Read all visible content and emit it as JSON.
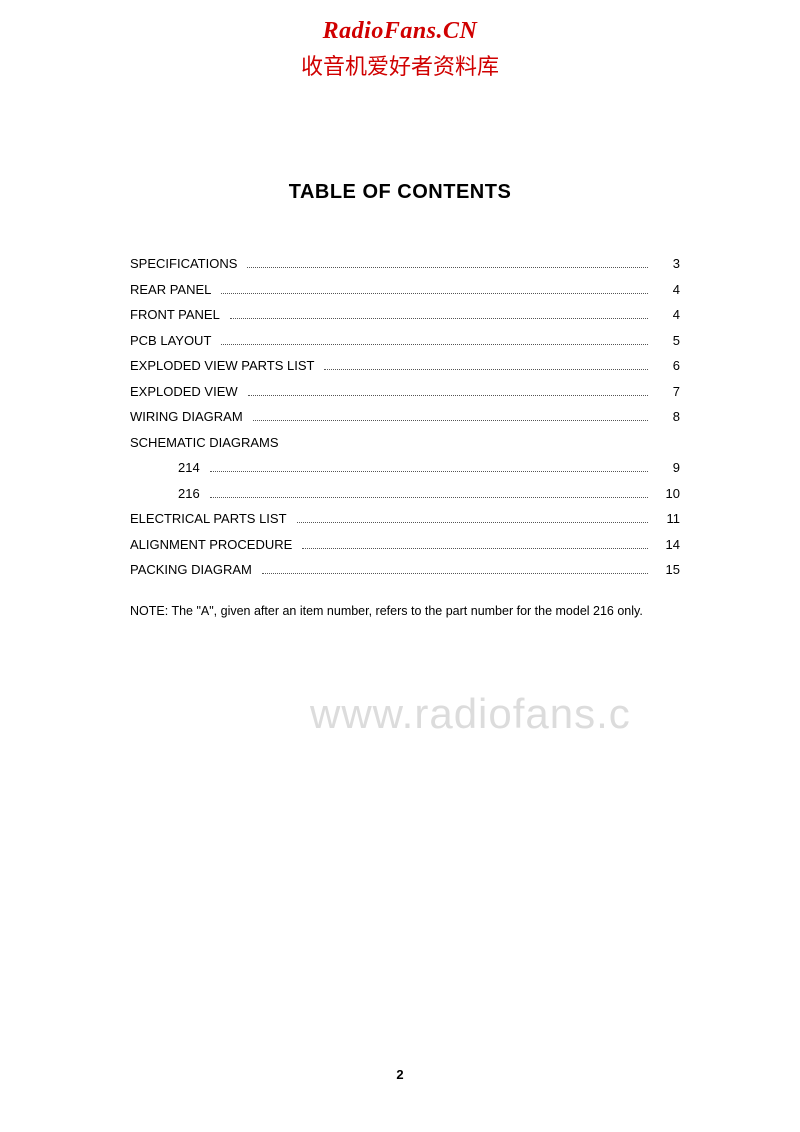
{
  "header": {
    "site_title": "RadioFans.CN",
    "site_subtitle": "收音机爱好者资料库"
  },
  "toc": {
    "title": "TABLE OF CONTENTS",
    "entries": [
      {
        "label": "SPECIFICATIONS",
        "page": "3",
        "indent": false,
        "has_page": true
      },
      {
        "label": "REAR PANEL",
        "page": "4",
        "indent": false,
        "has_page": true
      },
      {
        "label": "FRONT PANEL",
        "page": "4",
        "indent": false,
        "has_page": true
      },
      {
        "label": "PCB LAYOUT",
        "page": "5",
        "indent": false,
        "has_page": true
      },
      {
        "label": "EXPLODED VIEW PARTS LIST",
        "page": "6",
        "indent": false,
        "has_page": true
      },
      {
        "label": "EXPLODED VIEW",
        "page": "7",
        "indent": false,
        "has_page": true
      },
      {
        "label": "WIRING DIAGRAM",
        "page": "8",
        "indent": false,
        "has_page": true
      },
      {
        "label": "SCHEMATIC DIAGRAMS",
        "page": "",
        "indent": false,
        "has_page": false
      },
      {
        "label": "214",
        "page": "9",
        "indent": true,
        "has_page": true
      },
      {
        "label": "216",
        "page": "10",
        "indent": true,
        "has_page": true
      },
      {
        "label": "ELECTRICAL PARTS LIST",
        "page": "11",
        "indent": false,
        "has_page": true
      },
      {
        "label": "ALIGNMENT PROCEDURE",
        "page": "14",
        "indent": false,
        "has_page": true
      },
      {
        "label": "PACKING DIAGRAM",
        "page": "15",
        "indent": false,
        "has_page": true
      }
    ]
  },
  "note": "NOTE:  The \"A\", given after an item number, refers to the part number for the model 216 only.",
  "watermark": "www.radiofans.c",
  "page_number": "2",
  "colors": {
    "header_red": "#d00000",
    "watermark_gray": "#dcdcdc",
    "text_black": "#000000",
    "background": "#ffffff"
  },
  "fonts": {
    "header_family": "Times New Roman",
    "body_family": "Arial",
    "header_size_pt": 18,
    "subtitle_size_pt": 16,
    "toc_title_size_pt": 15,
    "body_size_pt": 10,
    "watermark_size_pt": 32
  }
}
